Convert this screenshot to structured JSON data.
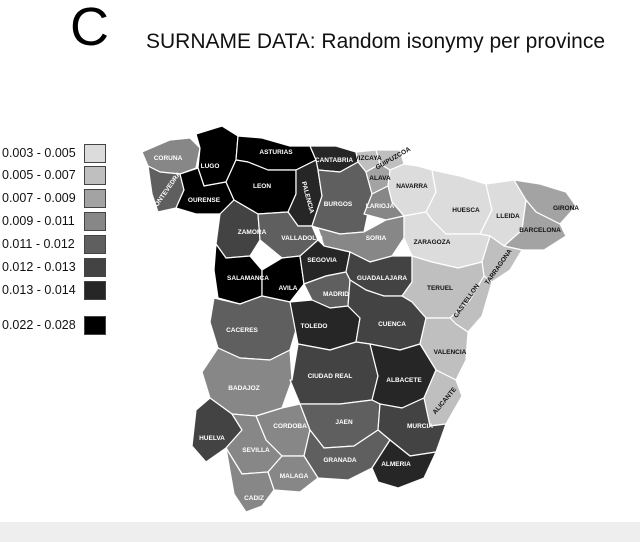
{
  "panel_letter": "C",
  "title": "SURNAME DATA: Random isonymy per province",
  "legend": [
    {
      "label": "0.003 - 0.005",
      "color": "#dcdcdc"
    },
    {
      "label": "0.005 - 0.007",
      "color": "#bfbfbf"
    },
    {
      "label": "0.007 - 0.009",
      "color": "#a3a3a3"
    },
    {
      "label": "0.009 - 0.011",
      "color": "#878787"
    },
    {
      "label": "0.011 - 0.012",
      "color": "#5f5f5f"
    },
    {
      "label": "0.012 - 0.013",
      "color": "#434343"
    },
    {
      "label": "0.013 - 0.014",
      "color": "#262626"
    },
    {
      "label": "0.022 - 0.028",
      "color": "#000000"
    }
  ],
  "provinces": [
    {
      "name": "CORUNA",
      "class": 3
    },
    {
      "name": "LUGO",
      "class": 7
    },
    {
      "name": "ASTURIAS",
      "class": 7
    },
    {
      "name": "CANTABRIA",
      "class": 6
    },
    {
      "name": "VIZCAYA",
      "class": 1
    },
    {
      "name": "GUIPUZCOA",
      "class": 1
    },
    {
      "name": "PONTEVEDRA",
      "class": 4
    },
    {
      "name": "OURENSE",
      "class": 7
    },
    {
      "name": "LEON",
      "class": 7
    },
    {
      "name": "PALENCIA",
      "class": 6
    },
    {
      "name": "BURGOS",
      "class": 4
    },
    {
      "name": "ALAVA",
      "class": 2
    },
    {
      "name": "NAVARRA",
      "class": 0
    },
    {
      "name": "LARIOJA",
      "class": 3
    },
    {
      "name": "HUESCA",
      "class": 0
    },
    {
      "name": "LLEIDA",
      "class": 0
    },
    {
      "name": "GIRONA",
      "class": 2
    },
    {
      "name": "BARCELONA",
      "class": 2
    },
    {
      "name": "ZAMORA",
      "class": 5
    },
    {
      "name": "VALLADOLID",
      "class": 4
    },
    {
      "name": "SORIA",
      "class": 3
    },
    {
      "name": "ZARAGOZA",
      "class": 0
    },
    {
      "name": "TARRAGONA",
      "class": 1
    },
    {
      "name": "SALAMANCA",
      "class": 7
    },
    {
      "name": "AVILA",
      "class": 7
    },
    {
      "name": "SEGOVIA",
      "class": 6
    },
    {
      "name": "GUADALAJARA",
      "class": 5
    },
    {
      "name": "MADRID",
      "class": 4
    },
    {
      "name": "TERUEL",
      "class": 1
    },
    {
      "name": "CASTELLON",
      "class": 1
    },
    {
      "name": "CACERES",
      "class": 4
    },
    {
      "name": "TOLEDO",
      "class": 6
    },
    {
      "name": "CUENCA",
      "class": 5
    },
    {
      "name": "VALENCIA",
      "class": 1
    },
    {
      "name": "BADAJOZ",
      "class": 3
    },
    {
      "name": "CIUDAD REAL",
      "class": 5
    },
    {
      "name": "ALBACETE",
      "class": 6
    },
    {
      "name": "ALICANTE",
      "class": 1
    },
    {
      "name": "CORDOBA",
      "class": 3
    },
    {
      "name": "JAEN",
      "class": 4
    },
    {
      "name": "MURCIA",
      "class": 5
    },
    {
      "name": "HUELVA",
      "class": 5
    },
    {
      "name": "SEVILLA",
      "class": 3
    },
    {
      "name": "GRANADA",
      "class": 4
    },
    {
      "name": "ALMERIA",
      "class": 6
    },
    {
      "name": "MALAGA",
      "class": 3
    },
    {
      "name": "CADIZ",
      "class": 3
    }
  ]
}
